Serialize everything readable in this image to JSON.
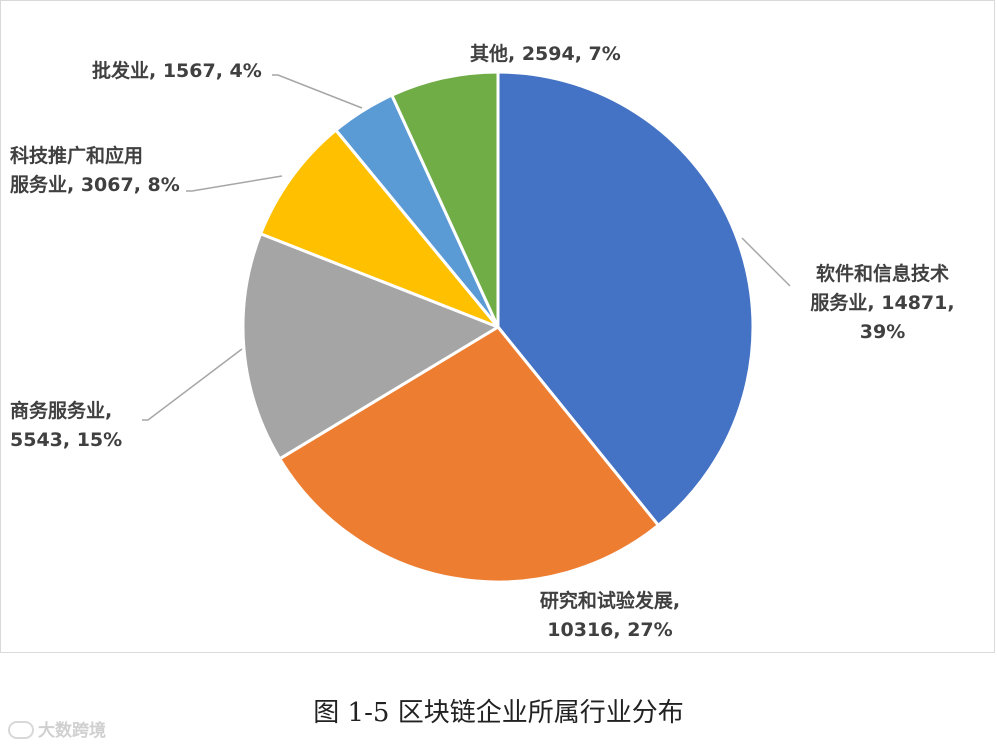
{
  "chart_data": {
    "type": "pie",
    "start_angle_deg": 0,
    "direction": "clockwise",
    "slices": [
      {
        "label_lines": [
          "软件和信息技术",
          "服务业, 14871,",
          "39%"
        ],
        "category": "软件和信息技术服务业",
        "value": 14871,
        "percent": "39%",
        "color": "#4472C4"
      },
      {
        "label_lines": [
          "研究和试验发展,",
          "10316, 27%"
        ],
        "category": "研究和试验发展",
        "value": 10316,
        "percent": "27%",
        "color": "#ED7D31"
      },
      {
        "label_lines": [
          "商务服务业,",
          "5543, 15%"
        ],
        "category": "商务服务业",
        "value": 5543,
        "percent": "15%",
        "color": "#A5A5A5"
      },
      {
        "label_lines": [
          "科技推广和应用",
          "服务业, 3067, 8%"
        ],
        "category": "科技推广和应用服务业",
        "value": 3067,
        "percent": "8%",
        "color": "#FFC000"
      },
      {
        "label_lines": [
          "批发业, 1567, 4%"
        ],
        "category": "批发业",
        "value": 1567,
        "percent": "4%",
        "color": "#5B9BD5"
      },
      {
        "label_lines": [
          "其他, 2594, 7%"
        ],
        "category": "其他",
        "value": 2594,
        "percent": "7%",
        "color": "#70AD47"
      }
    ],
    "legend": "none"
  },
  "caption": "图 1-5 区块链企业所属行业分布",
  "watermark": "大数跨境"
}
